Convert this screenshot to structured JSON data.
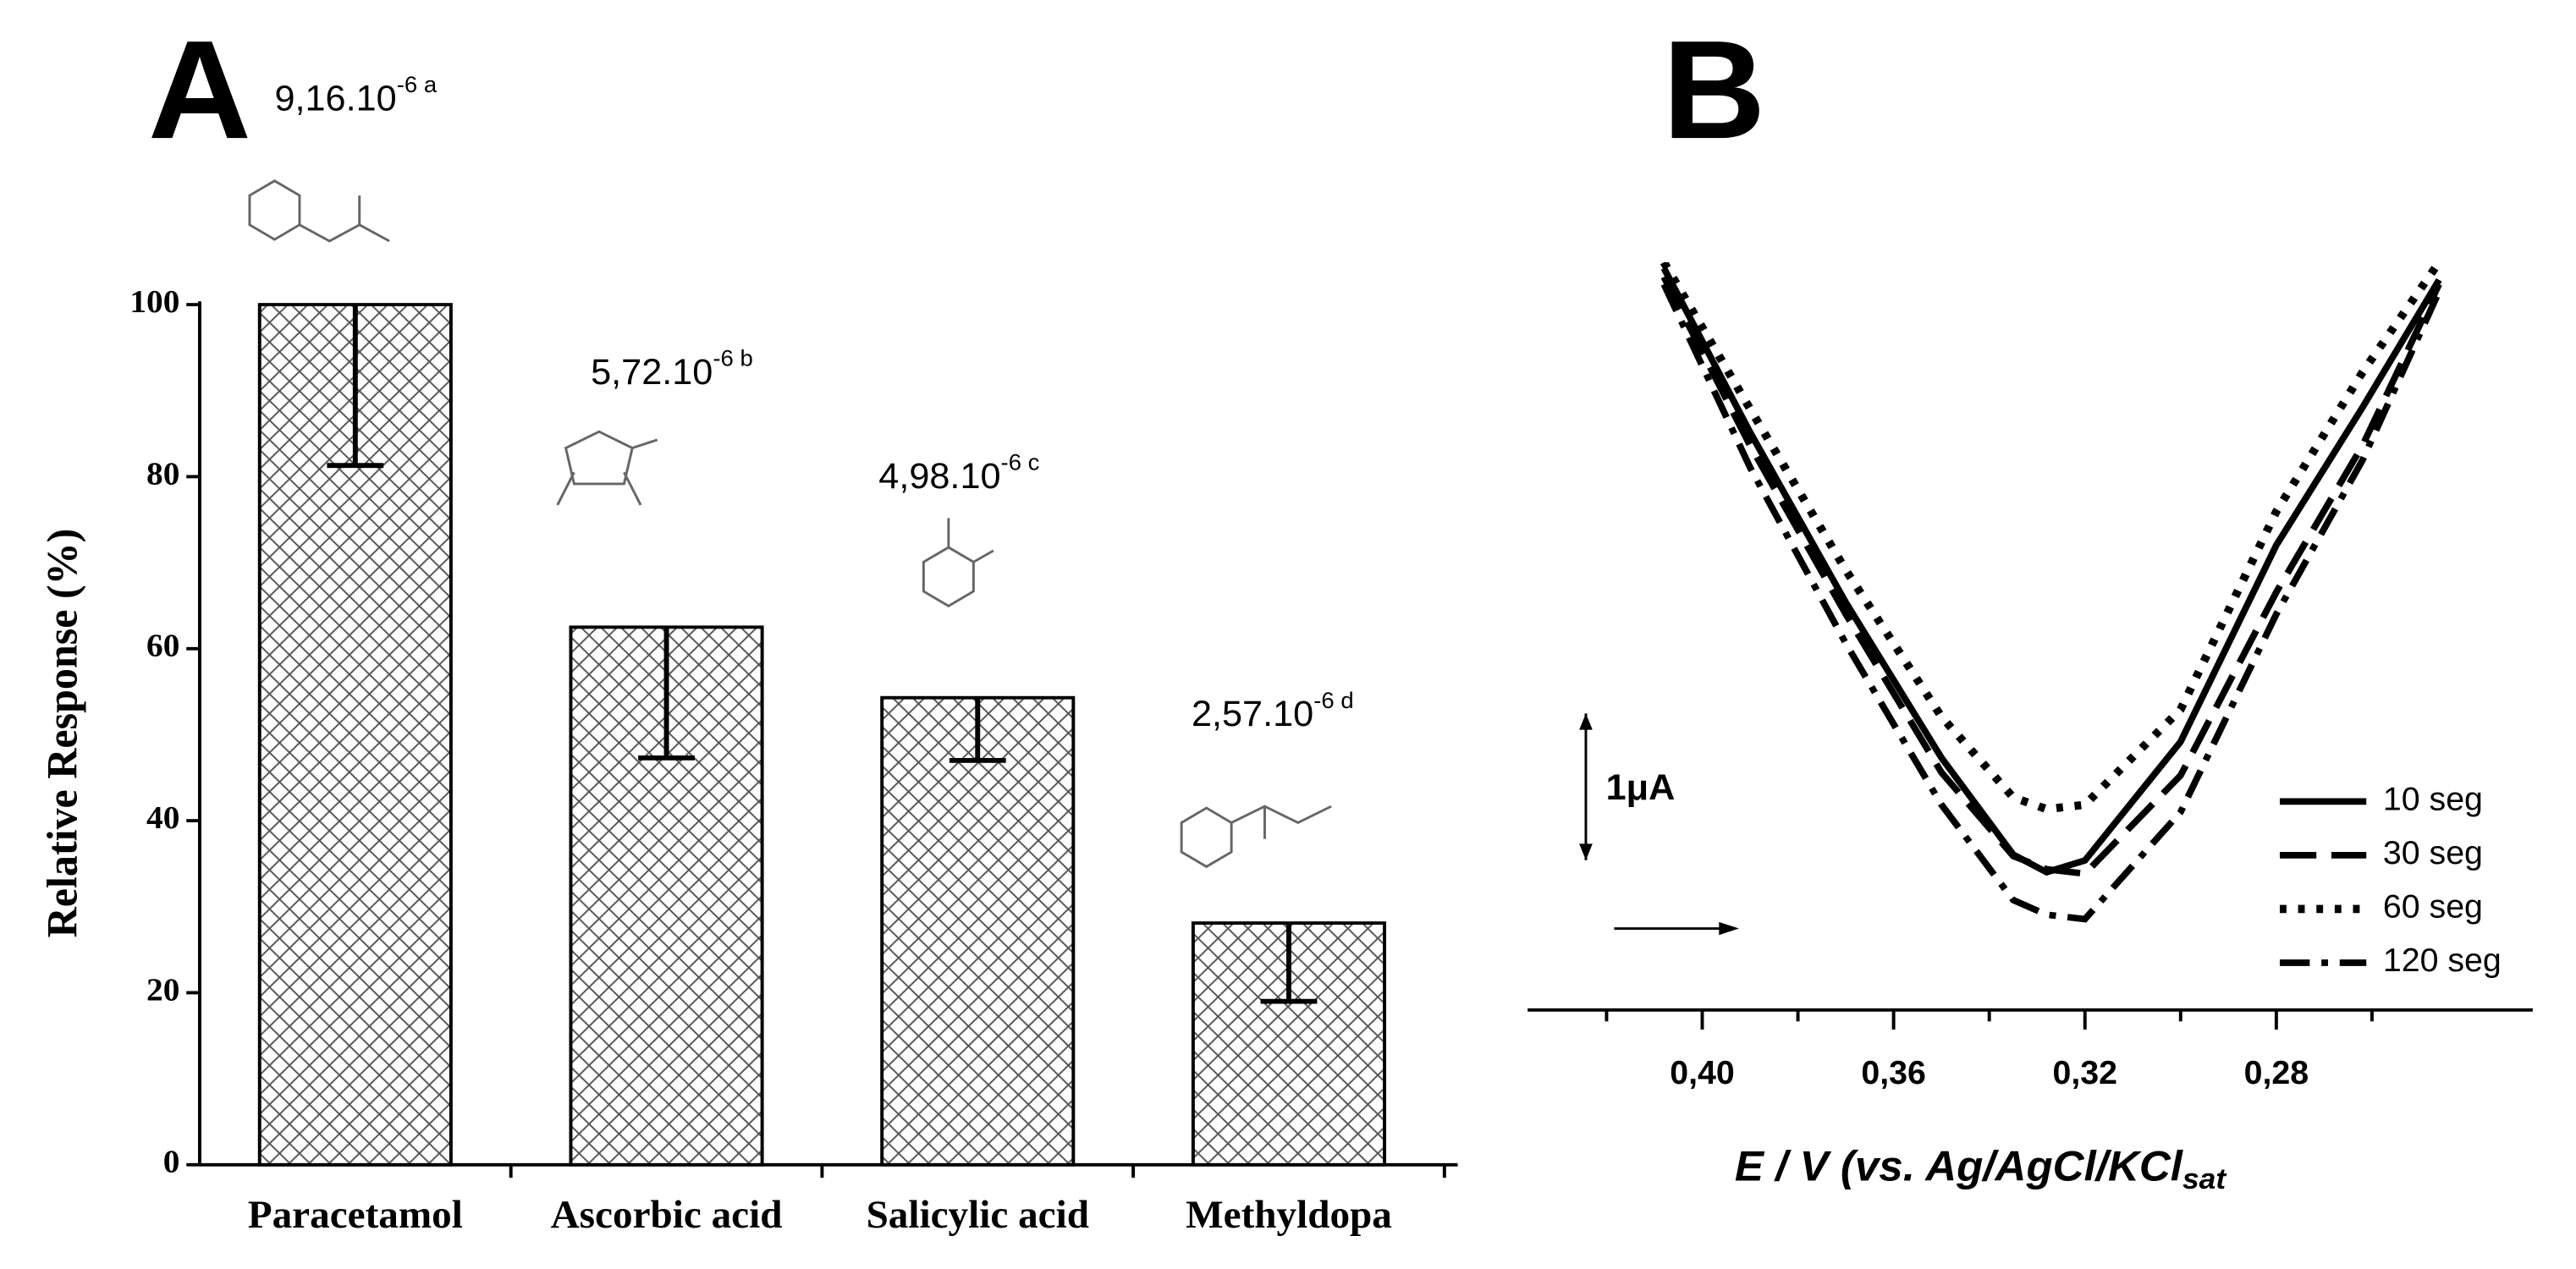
{
  "chart_data": [
    {
      "type": "bar",
      "panel": "A",
      "ylabel": "Relative Response (%)",
      "categories": [
        "Paracetamol",
        "Ascorbic acid",
        "Salicylic acid",
        "Methyldopa"
      ],
      "values": [
        100,
        62.5,
        54.3,
        28.1
      ],
      "errors": [
        18.7,
        15.2,
        7.3,
        9.1
      ],
      "annotations": [
        {
          "text": "9,16.10",
          "sup": "-6 a"
        },
        {
          "text": "5,72.10",
          "sup": "-6 b"
        },
        {
          "text": "4,98.10",
          "sup": "-6 c"
        },
        {
          "text": "2,57.10",
          "sup": "-6 d"
        }
      ],
      "ylim": [
        0,
        100
      ],
      "yticks": [
        0,
        20,
        40,
        60,
        80,
        100
      ]
    },
    {
      "type": "line",
      "panel": "B",
      "xlabel": {
        "text": "E / V (vs. Ag/AgCl/KCl",
        "sub": "sat"
      },
      "x": [
        0.408,
        0.39,
        0.37,
        0.35,
        0.335,
        0.328,
        0.32,
        0.3,
        0.28,
        0.262,
        0.246
      ],
      "series": [
        {
          "name": "10 seg",
          "color": "#000000",
          "dash": "solid",
          "values": [
            5.06,
            3.94,
            2.78,
            1.72,
            1.06,
            0.94,
            1.02,
            1.83,
            3.17,
            4.11,
            4.98
          ]
        },
        {
          "name": "30 seg",
          "color": "#000000",
          "dash": "dashed",
          "values": [
            5.0,
            3.85,
            2.7,
            1.62,
            1.05,
            0.96,
            0.93,
            1.6,
            2.85,
            3.85,
            4.95
          ]
        },
        {
          "name": "60 seg",
          "color": "#000000",
          "dash": "dotted",
          "values": [
            5.1,
            4.1,
            3.0,
            2.0,
            1.45,
            1.37,
            1.4,
            2.05,
            3.4,
            4.35,
            5.1
          ]
        },
        {
          "name": "120 seg",
          "color": "#000000",
          "dash": "dashdot",
          "values": [
            4.95,
            3.7,
            2.5,
            1.4,
            0.75,
            0.65,
            0.62,
            1.35,
            2.7,
            3.75,
            4.9
          ]
        }
      ],
      "scale_bar": {
        "label": "1μA",
        "value": 1
      },
      "xlim": [
        0.4365,
        0.2264
      ],
      "ylim": [
        0,
        5.1
      ],
      "xticks": [
        {
          "value": 0.4,
          "label": "0,40"
        },
        {
          "value": 0.36,
          "label": "0,36"
        },
        {
          "value": 0.32,
          "label": "0,32"
        },
        {
          "value": 0.28,
          "label": "0,28"
        }
      ],
      "xminor_ticks": [
        0.42,
        0.38,
        0.34,
        0.3,
        0.26
      ]
    }
  ]
}
